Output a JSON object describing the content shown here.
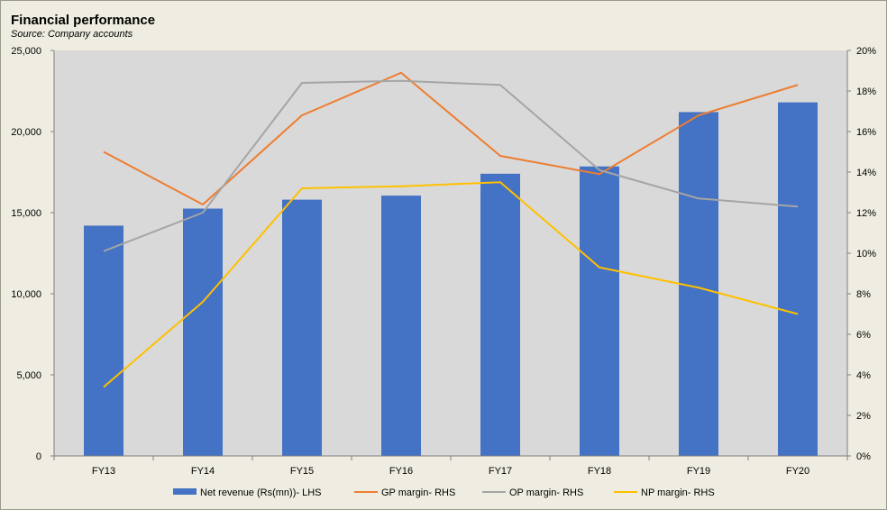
{
  "header": {
    "title": "Financial performance",
    "subtitle": "Source: Company accounts"
  },
  "colors": {
    "bar": "#4472c4",
    "gp": "#ed7d31",
    "op": "#a5a5a5",
    "np": "#ffc000",
    "plot_bg": "#d9d9d9",
    "page_bg": "#efede1"
  },
  "chart_data": {
    "type": "bar",
    "categories": [
      "FY13",
      "FY14",
      "FY15",
      "FY16",
      "FY17",
      "FY18",
      "FY19",
      "FY20"
    ],
    "series": [
      {
        "name": "Net revenue (Rs(mn))- LHS",
        "type": "bar",
        "axis": "left",
        "values": [
          14200,
          15250,
          15800,
          16050,
          17400,
          17850,
          21200,
          21800
        ]
      },
      {
        "name": "GP margin- RHS",
        "type": "line",
        "axis": "right",
        "values": [
          15.0,
          12.4,
          16.8,
          18.9,
          14.8,
          13.9,
          16.8,
          18.3
        ]
      },
      {
        "name": "OP margin- RHS",
        "type": "line",
        "axis": "right",
        "values": [
          10.1,
          12.0,
          18.4,
          18.5,
          18.3,
          14.1,
          12.7,
          12.3
        ]
      },
      {
        "name": "NP margin- RHS",
        "type": "line",
        "axis": "right",
        "values": [
          3.4,
          7.6,
          13.2,
          13.3,
          13.5,
          9.3,
          8.3,
          7.0
        ]
      }
    ],
    "y_left": {
      "ylim": [
        0,
        25000
      ],
      "ticks": [
        "0",
        "5,000",
        "10,000",
        "15,000",
        "20,000",
        "25,000"
      ]
    },
    "y_right": {
      "ylim": [
        0,
        20
      ],
      "ticks": [
        "0%",
        "2%",
        "4%",
        "6%",
        "8%",
        "10%",
        "12%",
        "14%",
        "16%",
        "18%",
        "20%"
      ]
    },
    "legend_position": "bottom",
    "grid": false
  }
}
